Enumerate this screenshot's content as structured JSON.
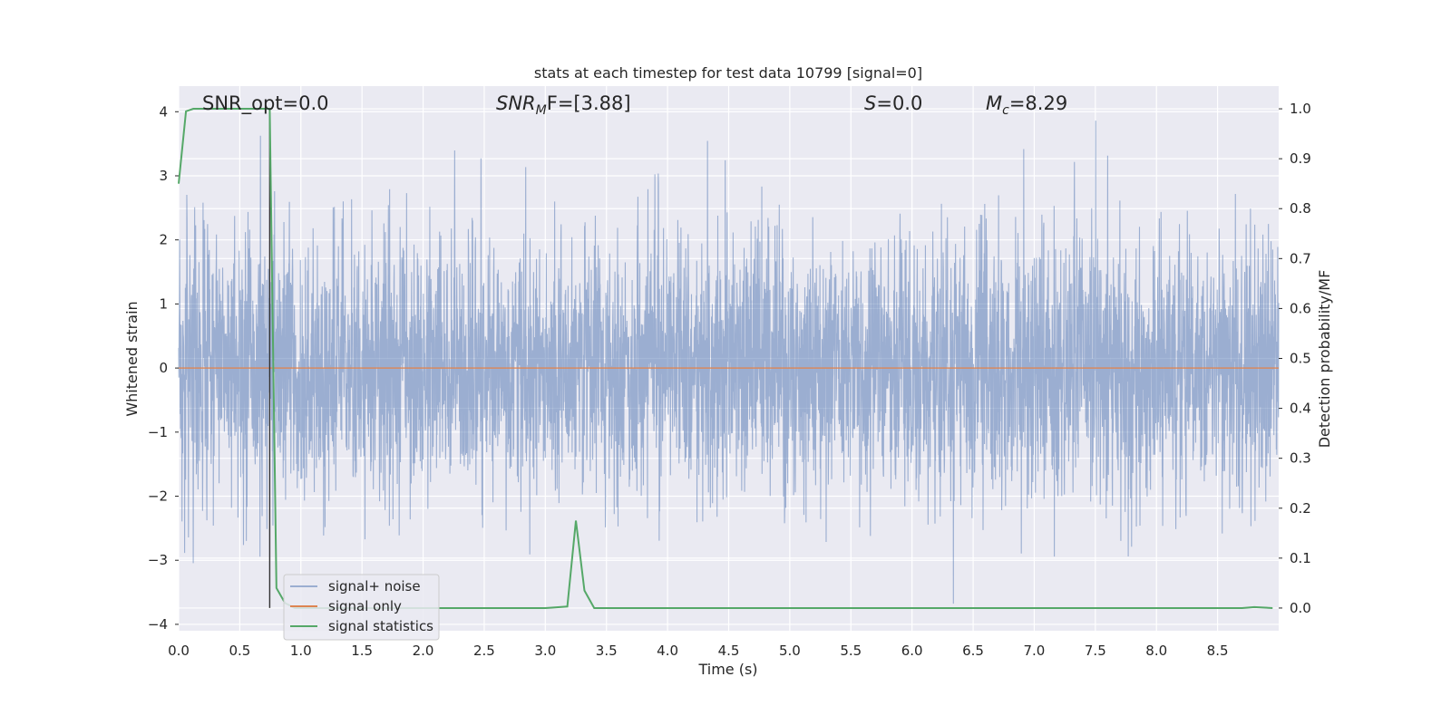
{
  "chart_data": {
    "type": "line",
    "title": "stats at each timestep for test data 10799 [signal=0]",
    "xlabel": "Time (s)",
    "ylabel_left": "Whitened strain",
    "ylabel_right": "Detection probability/MF",
    "xlim": [
      0.0,
      9.0
    ],
    "ylim_left": [
      -4.1,
      4.4
    ],
    "ylim_right": [
      -0.0455,
      1.0455
    ],
    "x_ticks": [
      "0.0",
      "0.5",
      "1.0",
      "1.5",
      "2.0",
      "2.5",
      "3.0",
      "3.5",
      "4.0",
      "4.5",
      "5.0",
      "5.5",
      "6.0",
      "6.5",
      "7.0",
      "7.5",
      "8.0",
      "8.5"
    ],
    "y_ticks_left": [
      "−4",
      "−3",
      "−2",
      "−1",
      "0",
      "1",
      "2",
      "3",
      "4"
    ],
    "y_ticks_right": [
      "0.0",
      "0.1",
      "0.2",
      "0.3",
      "0.4",
      "0.5",
      "0.6",
      "0.7",
      "0.8",
      "0.9",
      "1.0"
    ],
    "grid": true,
    "legend_position": "lower-left",
    "annotations": {
      "snr_opt": "SNR_opt=0.0",
      "snr_mf_sym": "SNR",
      "snr_mf_sub": "M",
      "snr_mf_rest": "F=[3.88]",
      "s_sym": "S",
      "s_rest": "=0.0",
      "mc_sym": "M",
      "mc_sub": "c",
      "mc_rest": "=8.29"
    },
    "series": [
      {
        "name": "signal+ noise",
        "color": "#4c72b0",
        "opacity": 0.5,
        "description_values": "whitened noise, approx. gaussian, sigma 1, 9s of data",
        "amplitude_sigma": 1.0
      },
      {
        "name": "signal only",
        "color": "#dd8452",
        "values_constant": 0.0
      },
      {
        "name": "signal statistics",
        "color": "#55a868",
        "x": [
          0.0,
          0.06,
          0.12,
          0.2,
          0.3,
          0.4,
          0.5,
          0.6,
          0.7,
          0.745,
          0.8,
          0.87,
          0.95,
          1.5,
          2.0,
          2.5,
          3.0,
          3.18,
          3.25,
          3.32,
          3.4,
          3.5,
          4.0,
          5.0,
          6.0,
          7.0,
          8.0,
          8.7,
          8.8,
          8.95
        ],
        "values": [
          0.85,
          0.995,
          1.0,
          1.0,
          1.0,
          1.0,
          1.0,
          1.0,
          1.0,
          1.0,
          0.04,
          0.01,
          0.0,
          0.0,
          0.0,
          0.0,
          0.0,
          0.003,
          0.175,
          0.035,
          0.0,
          0.0,
          0.0,
          0.0,
          0.0,
          0.0,
          0.0,
          0.0,
          0.002,
          0.0
        ]
      }
    ],
    "vline_x": 0.745
  },
  "colors": {
    "axes_bg": "#eaeaf2",
    "grid": "#ffffff",
    "text": "#262626",
    "vline": "#333333"
  }
}
